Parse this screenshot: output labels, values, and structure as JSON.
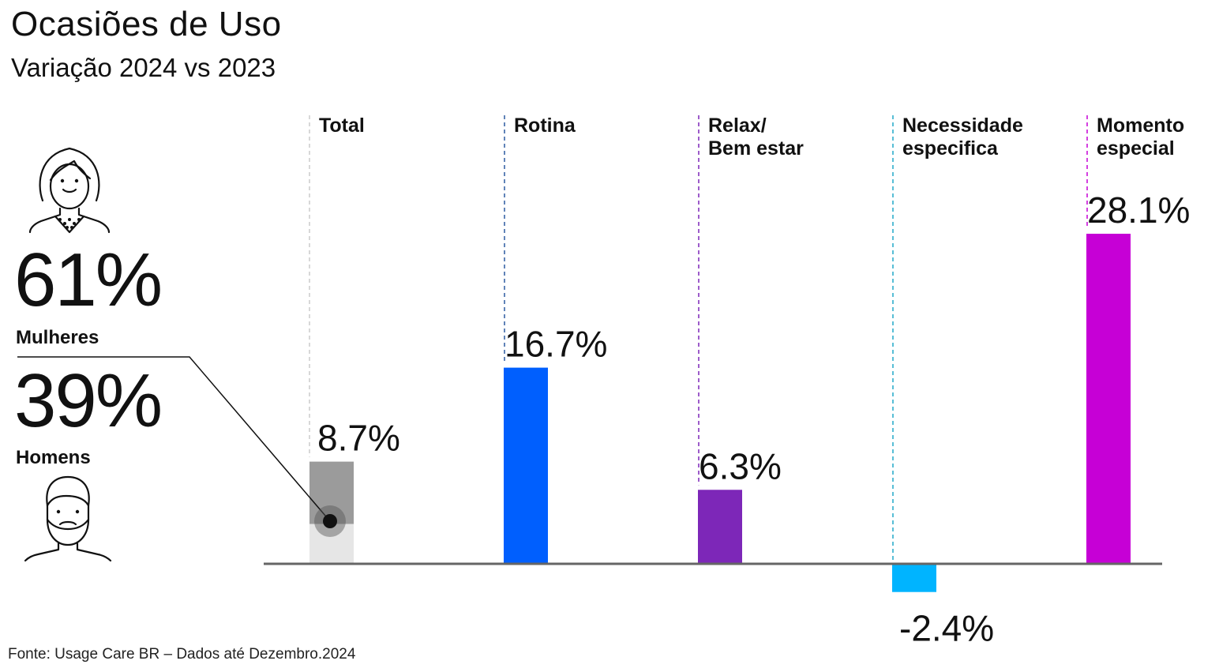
{
  "header": {
    "title": "Ocasiões de Uso",
    "subtitle": "Variação 2024 vs 2023"
  },
  "gender_split": {
    "women": {
      "pct": "61%",
      "label": "Mulheres",
      "icon": "woman-icon"
    },
    "men": {
      "pct": "39%",
      "label": "Homens",
      "icon": "man-icon"
    }
  },
  "footer": {
    "source": "Fonte: Usage Care BR – Dados até Dezembro.2024"
  },
  "colors": {
    "total": "#9b9b9b",
    "total_light": "#e6e6e6",
    "rotina": "#005ffe",
    "relax": "#7d27b8",
    "necessidade": "#00b4ff",
    "momento": "#c600d6",
    "baseline": "#666666",
    "guide_total": "#cccccc",
    "guide_rotina": "#2c5aa0",
    "guide_relax": "#7d27b8",
    "guide_necessidade": "#21a9c9",
    "guide_momento": "#c600d6"
  },
  "chart_data": {
    "type": "bar",
    "categories": [
      [
        "Total"
      ],
      [
        "Rotina"
      ],
      [
        "Relax/",
        "Bem estar"
      ],
      [
        "Necessidade",
        "especifica"
      ],
      [
        "Momento",
        "especial"
      ]
    ],
    "values": [
      8.7,
      16.7,
      6.3,
      -2.4,
      28.1
    ],
    "value_labels": [
      "8.7%",
      "16.7%",
      "6.3%",
      "-2.4%",
      "28.1%"
    ],
    "total_split": {
      "women_share": 0.61,
      "men_share": 0.39
    },
    "ylim": [
      -2.4,
      28.1
    ],
    "grid": false,
    "legend": "none"
  }
}
